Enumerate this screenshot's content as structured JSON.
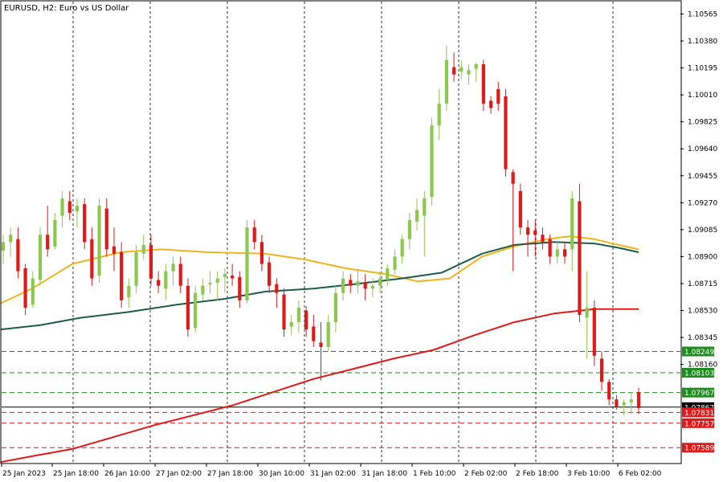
{
  "chart_data": {
    "type": "candlestick",
    "title": "EURUSD, H2:  Euro vs US Dollar",
    "y_range": [
      1.0748,
      1.1065
    ],
    "y_ticks": [
      "1.10565",
      "1.10380",
      "1.10195",
      "1.10010",
      "1.09825",
      "1.09640",
      "1.09455",
      "1.09270",
      "1.09085",
      "1.08900",
      "1.08715",
      "1.08530",
      "1.08345",
      "1.08160"
    ],
    "x_ticks": [
      "25 Jan 2023",
      "25 Jan 18:00",
      "26 Jan 10:00",
      "27 Jan 02:00",
      "27 Jan 18:00",
      "30 Jan 10:00",
      "31 Jan 02:00",
      "31 Jan 18:00",
      "1 Feb 10:00",
      "2 Feb 02:00",
      "2 Feb 18:00",
      "3 Feb 10:00",
      "6 Feb 02:00"
    ],
    "candles": [
      [
        1.0894,
        1.0905,
        1.0885,
        1.09
      ],
      [
        1.09,
        1.091,
        1.089,
        1.0905
      ],
      [
        1.0902,
        1.091,
        1.0875,
        1.088
      ],
      [
        1.0882,
        1.0885,
        1.085,
        1.0855
      ],
      [
        1.0857,
        1.088,
        1.0855,
        1.0875
      ],
      [
        1.0874,
        1.091,
        1.087,
        1.0905
      ],
      [
        1.0905,
        1.0925,
        1.089,
        1.0895
      ],
      [
        1.0897,
        1.092,
        1.0895,
        1.0915
      ],
      [
        1.0918,
        1.0935,
        1.091,
        1.093
      ],
      [
        1.0928,
        1.0935,
        1.0915,
        1.092
      ],
      [
        1.0921,
        1.093,
        1.091,
        1.0925
      ],
      [
        1.0926,
        1.093,
        1.0895,
        1.09
      ],
      [
        1.0902,
        1.091,
        1.087,
        1.0875
      ],
      [
        1.0877,
        1.093,
        1.0872,
        1.0925
      ],
      [
        1.0923,
        1.093,
        1.089,
        1.0895
      ],
      [
        1.0897,
        1.091,
        1.088,
        1.0892
      ],
      [
        1.0893,
        1.09,
        1.0855,
        1.086
      ],
      [
        1.0862,
        1.0875,
        1.0855,
        1.087
      ],
      [
        1.087,
        1.0898,
        1.0865,
        1.0893
      ],
      [
        1.0892,
        1.0905,
        1.0888,
        1.0898
      ],
      [
        1.0898,
        1.0905,
        1.087,
        1.0875
      ],
      [
        1.0874,
        1.088,
        1.0865,
        1.087
      ],
      [
        1.0868,
        1.0885,
        1.086,
        1.088
      ],
      [
        1.088,
        1.089,
        1.087,
        1.0885
      ],
      [
        1.0885,
        1.089,
        1.0865,
        1.087
      ],
      [
        1.087,
        1.0875,
        1.0835,
        1.084
      ],
      [
        1.0841,
        1.087,
        1.0838,
        1.0865
      ],
      [
        1.0864,
        1.0875,
        1.086,
        1.087
      ],
      [
        1.0871,
        1.088,
        1.0865,
        1.0872
      ],
      [
        1.0872,
        1.088,
        1.086,
        1.0875
      ],
      [
        1.0876,
        1.0882,
        1.0865,
        1.0878
      ],
      [
        1.0877,
        1.0885,
        1.087,
        1.0875
      ],
      [
        1.0876,
        1.088,
        1.0855,
        1.086
      ],
      [
        1.086,
        1.0915,
        1.0858,
        1.091
      ],
      [
        1.091,
        1.0915,
        1.0895,
        1.09
      ],
      [
        1.09,
        1.0905,
        1.088,
        1.0885
      ],
      [
        1.0886,
        1.089,
        1.0865,
        1.087
      ],
      [
        1.0871,
        1.0875,
        1.0855,
        1.0865
      ],
      [
        1.0864,
        1.0868,
        1.0835,
        1.084
      ],
      [
        1.0842,
        1.085,
        1.0836,
        1.0845
      ],
      [
        1.0845,
        1.086,
        1.0838,
        1.0855
      ],
      [
        1.0853,
        1.0856,
        1.0835,
        1.084
      ],
      [
        1.0842,
        1.085,
        1.0828,
        1.0832
      ],
      [
        1.0831,
        1.0845,
        1.0805,
        1.0828
      ],
      [
        1.0828,
        1.085,
        1.0825,
        1.0845
      ],
      [
        1.0845,
        1.087,
        1.0838,
        1.0865
      ],
      [
        1.0865,
        1.088,
        1.086,
        1.0875
      ],
      [
        1.0874,
        1.0878,
        1.0865,
        1.087
      ],
      [
        1.087,
        1.088,
        1.0865,
        1.0873
      ],
      [
        1.0872,
        1.0878,
        1.086,
        1.0868
      ],
      [
        1.0868,
        1.0875,
        1.0862,
        1.087
      ],
      [
        1.087,
        1.088,
        1.0865,
        1.0875
      ],
      [
        1.0874,
        1.0885,
        1.087,
        1.0882
      ],
      [
        1.0881,
        1.0895,
        1.0878,
        1.089
      ],
      [
        1.089,
        1.0905,
        1.0885,
        1.0902
      ],
      [
        1.0902,
        1.092,
        1.0895,
        1.0915
      ],
      [
        1.0914,
        1.093,
        1.0908,
        1.0922
      ],
      [
        1.0918,
        1.0935,
        1.089,
        1.093
      ],
      [
        1.0931,
        1.0985,
        1.0925,
        1.098
      ],
      [
        1.098,
        1.1005,
        1.097,
        1.0995
      ],
      [
        1.0995,
        1.1035,
        1.099,
        1.1025
      ],
      [
        1.102,
        1.103,
        1.101,
        1.1015
      ],
      [
        1.1017,
        1.1025,
        1.1012,
        1.102
      ],
      [
        1.1015,
        1.1022,
        1.1008,
        1.1018
      ],
      [
        1.1019,
        1.1023,
        1.101,
        1.1022
      ],
      [
        1.1022,
        1.1025,
        1.099,
        1.0995
      ],
      [
        1.0997,
        1.1,
        1.0988,
        1.0992
      ],
      [
        1.1005,
        1.101,
        1.099,
        1.0995
      ],
      [
        1.1,
        1.1005,
        1.0945,
        1.095
      ],
      [
        1.0948,
        1.095,
        1.088,
        1.094
      ],
      [
        1.0935,
        1.094,
        1.0905,
        1.091
      ],
      [
        1.091,
        1.0915,
        1.089,
        1.0905
      ],
      [
        1.0908,
        1.0915,
        1.089,
        1.0905
      ],
      [
        1.0905,
        1.091,
        1.0895,
        1.09
      ],
      [
        1.0902,
        1.0905,
        1.0885,
        1.089
      ],
      [
        1.089,
        1.09,
        1.0885,
        1.0895
      ],
      [
        1.0895,
        1.09,
        1.0885,
        1.089
      ],
      [
        1.0895,
        1.0935,
        1.088,
        1.093
      ],
      [
        1.0928,
        1.094,
        1.0845,
        1.085
      ],
      [
        1.0848,
        1.088,
        1.082,
        1.0855
      ],
      [
        1.0855,
        1.086,
        1.0815,
        1.0822
      ],
      [
        1.082,
        1.0825,
        1.0798,
        1.0804
      ],
      [
        1.0804,
        1.0806,
        1.0788,
        1.0792
      ],
      [
        1.0792,
        1.0795,
        1.0785,
        1.0787
      ],
      [
        1.0788,
        1.0792,
        1.0781,
        1.079
      ],
      [
        1.079,
        1.0797,
        1.0782,
        1.0792
      ],
      [
        1.0797,
        1.08,
        1.0782,
        1.0786
      ]
    ],
    "moving_averages": [
      {
        "color": "#f0b41c",
        "values": [
          [
            1,
            1.0858
          ],
          [
            40,
            1.0868
          ],
          [
            90,
            1.0885
          ],
          [
            150,
            1.0893
          ],
          [
            200,
            1.0895
          ],
          [
            260,
            1.0893
          ],
          [
            330,
            1.0892
          ],
          [
            380,
            1.0888
          ],
          [
            430,
            1.0882
          ],
          [
            480,
            1.0878
          ],
          [
            520,
            1.0873
          ],
          [
            560,
            1.0875
          ],
          [
            600,
            1.089
          ],
          [
            640,
            1.0897
          ],
          [
            680,
            1.0902
          ],
          [
            710,
            1.0904
          ],
          [
            740,
            1.0902
          ],
          [
            770,
            1.0898
          ],
          [
            795,
            1.0895
          ]
        ]
      },
      {
        "color": "#1f5a4a",
        "values": [
          [
            1,
            1.084
          ],
          [
            50,
            1.0843
          ],
          [
            100,
            1.0848
          ],
          [
            160,
            1.0852
          ],
          [
            220,
            1.0857
          ],
          [
            280,
            1.0861
          ],
          [
            330,
            1.0866
          ],
          [
            390,
            1.0868
          ],
          [
            440,
            1.0871
          ],
          [
            500,
            1.0875
          ],
          [
            550,
            1.0879
          ],
          [
            600,
            1.0892
          ],
          [
            640,
            1.0898
          ],
          [
            690,
            1.09
          ],
          [
            740,
            1.0899
          ],
          [
            770,
            1.0896
          ],
          [
            795,
            1.0893
          ]
        ]
      },
      {
        "color": "#e01919",
        "values": [
          [
            1,
            1.0749
          ],
          [
            40,
            1.0753
          ],
          [
            90,
            1.0758
          ],
          [
            140,
            1.0766
          ],
          [
            190,
            1.0774
          ],
          [
            240,
            1.0781
          ],
          [
            290,
            1.0788
          ],
          [
            340,
            1.0797
          ],
          [
            390,
            1.0806
          ],
          [
            440,
            1.0813
          ],
          [
            490,
            1.082
          ],
          [
            540,
            1.0826
          ],
          [
            590,
            1.0836
          ],
          [
            640,
            1.0845
          ],
          [
            690,
            1.0851
          ],
          [
            740,
            1.0854
          ],
          [
            795,
            1.0854
          ]
        ]
      }
    ],
    "hlines": [
      {
        "value": 1.08249,
        "label": "1.08249",
        "color": "#1e8c1e",
        "dash": true
      },
      {
        "value": 1.08103,
        "label": "1.08103",
        "color": "#1e8c1e",
        "dash": true
      },
      {
        "value": 1.07967,
        "label": "1.07967",
        "color": "#1e8c1e",
        "dash": true
      },
      {
        "value": 1.07867,
        "label": "1.07867",
        "color": "#000000",
        "dash": false
      },
      {
        "value": 1.07831,
        "label": "1.07831",
        "color": "#e01919",
        "dash": true
      },
      {
        "value": 1.07757,
        "label": "1.07757",
        "color": "#e01919",
        "dash": true
      },
      {
        "value": 1.07589,
        "label": "1.07589",
        "color": "#e01919",
        "dash": true
      }
    ],
    "colors": {
      "bull": "#8cc850",
      "bear": "#e01919"
    }
  }
}
